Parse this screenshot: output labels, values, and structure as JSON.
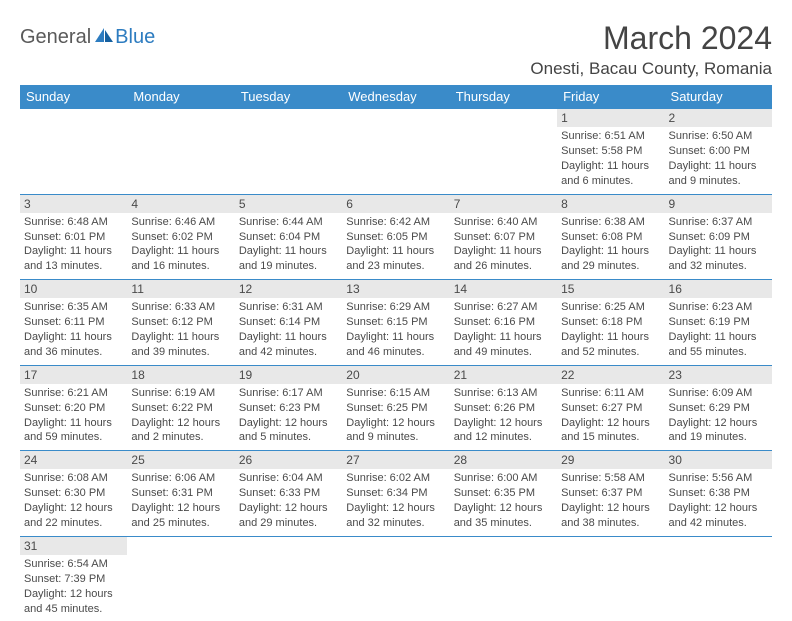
{
  "colors": {
    "header_bg": "#3a8bc9",
    "header_text": "#ffffff",
    "daynum_bg": "#e8e8e8",
    "body_text": "#4a4a4a",
    "logo_gray": "#5a5a5a",
    "logo_blue": "#2d7cc0",
    "row_border": "#3a8bc9"
  },
  "typography": {
    "month_title_fontsize": 32,
    "location_fontsize": 17,
    "dayhead_fontsize": 13,
    "daynum_fontsize": 12,
    "cell_fontsize": 11,
    "logo_fontsize": 20
  },
  "logo": {
    "general": "General",
    "blue": "Blue"
  },
  "title": "March 2024",
  "location": "Onesti, Bacau County, Romania",
  "dayHeaders": [
    "Sunday",
    "Monday",
    "Tuesday",
    "Wednesday",
    "Thursday",
    "Friday",
    "Saturday"
  ],
  "weeks": [
    [
      null,
      null,
      null,
      null,
      null,
      {
        "n": "1",
        "sr": "Sunrise: 6:51 AM",
        "ss": "Sunset: 5:58 PM",
        "dl": "Daylight: 11 hours and 6 minutes."
      },
      {
        "n": "2",
        "sr": "Sunrise: 6:50 AM",
        "ss": "Sunset: 6:00 PM",
        "dl": "Daylight: 11 hours and 9 minutes."
      }
    ],
    [
      {
        "n": "3",
        "sr": "Sunrise: 6:48 AM",
        "ss": "Sunset: 6:01 PM",
        "dl": "Daylight: 11 hours and 13 minutes."
      },
      {
        "n": "4",
        "sr": "Sunrise: 6:46 AM",
        "ss": "Sunset: 6:02 PM",
        "dl": "Daylight: 11 hours and 16 minutes."
      },
      {
        "n": "5",
        "sr": "Sunrise: 6:44 AM",
        "ss": "Sunset: 6:04 PM",
        "dl": "Daylight: 11 hours and 19 minutes."
      },
      {
        "n": "6",
        "sr": "Sunrise: 6:42 AM",
        "ss": "Sunset: 6:05 PM",
        "dl": "Daylight: 11 hours and 23 minutes."
      },
      {
        "n": "7",
        "sr": "Sunrise: 6:40 AM",
        "ss": "Sunset: 6:07 PM",
        "dl": "Daylight: 11 hours and 26 minutes."
      },
      {
        "n": "8",
        "sr": "Sunrise: 6:38 AM",
        "ss": "Sunset: 6:08 PM",
        "dl": "Daylight: 11 hours and 29 minutes."
      },
      {
        "n": "9",
        "sr": "Sunrise: 6:37 AM",
        "ss": "Sunset: 6:09 PM",
        "dl": "Daylight: 11 hours and 32 minutes."
      }
    ],
    [
      {
        "n": "10",
        "sr": "Sunrise: 6:35 AM",
        "ss": "Sunset: 6:11 PM",
        "dl": "Daylight: 11 hours and 36 minutes."
      },
      {
        "n": "11",
        "sr": "Sunrise: 6:33 AM",
        "ss": "Sunset: 6:12 PM",
        "dl": "Daylight: 11 hours and 39 minutes."
      },
      {
        "n": "12",
        "sr": "Sunrise: 6:31 AM",
        "ss": "Sunset: 6:14 PM",
        "dl": "Daylight: 11 hours and 42 minutes."
      },
      {
        "n": "13",
        "sr": "Sunrise: 6:29 AM",
        "ss": "Sunset: 6:15 PM",
        "dl": "Daylight: 11 hours and 46 minutes."
      },
      {
        "n": "14",
        "sr": "Sunrise: 6:27 AM",
        "ss": "Sunset: 6:16 PM",
        "dl": "Daylight: 11 hours and 49 minutes."
      },
      {
        "n": "15",
        "sr": "Sunrise: 6:25 AM",
        "ss": "Sunset: 6:18 PM",
        "dl": "Daylight: 11 hours and 52 minutes."
      },
      {
        "n": "16",
        "sr": "Sunrise: 6:23 AM",
        "ss": "Sunset: 6:19 PM",
        "dl": "Daylight: 11 hours and 55 minutes."
      }
    ],
    [
      {
        "n": "17",
        "sr": "Sunrise: 6:21 AM",
        "ss": "Sunset: 6:20 PM",
        "dl": "Daylight: 11 hours and 59 minutes."
      },
      {
        "n": "18",
        "sr": "Sunrise: 6:19 AM",
        "ss": "Sunset: 6:22 PM",
        "dl": "Daylight: 12 hours and 2 minutes."
      },
      {
        "n": "19",
        "sr": "Sunrise: 6:17 AM",
        "ss": "Sunset: 6:23 PM",
        "dl": "Daylight: 12 hours and 5 minutes."
      },
      {
        "n": "20",
        "sr": "Sunrise: 6:15 AM",
        "ss": "Sunset: 6:25 PM",
        "dl": "Daylight: 12 hours and 9 minutes."
      },
      {
        "n": "21",
        "sr": "Sunrise: 6:13 AM",
        "ss": "Sunset: 6:26 PM",
        "dl": "Daylight: 12 hours and 12 minutes."
      },
      {
        "n": "22",
        "sr": "Sunrise: 6:11 AM",
        "ss": "Sunset: 6:27 PM",
        "dl": "Daylight: 12 hours and 15 minutes."
      },
      {
        "n": "23",
        "sr": "Sunrise: 6:09 AM",
        "ss": "Sunset: 6:29 PM",
        "dl": "Daylight: 12 hours and 19 minutes."
      }
    ],
    [
      {
        "n": "24",
        "sr": "Sunrise: 6:08 AM",
        "ss": "Sunset: 6:30 PM",
        "dl": "Daylight: 12 hours and 22 minutes."
      },
      {
        "n": "25",
        "sr": "Sunrise: 6:06 AM",
        "ss": "Sunset: 6:31 PM",
        "dl": "Daylight: 12 hours and 25 minutes."
      },
      {
        "n": "26",
        "sr": "Sunrise: 6:04 AM",
        "ss": "Sunset: 6:33 PM",
        "dl": "Daylight: 12 hours and 29 minutes."
      },
      {
        "n": "27",
        "sr": "Sunrise: 6:02 AM",
        "ss": "Sunset: 6:34 PM",
        "dl": "Daylight: 12 hours and 32 minutes."
      },
      {
        "n": "28",
        "sr": "Sunrise: 6:00 AM",
        "ss": "Sunset: 6:35 PM",
        "dl": "Daylight: 12 hours and 35 minutes."
      },
      {
        "n": "29",
        "sr": "Sunrise: 5:58 AM",
        "ss": "Sunset: 6:37 PM",
        "dl": "Daylight: 12 hours and 38 minutes."
      },
      {
        "n": "30",
        "sr": "Sunrise: 5:56 AM",
        "ss": "Sunset: 6:38 PM",
        "dl": "Daylight: 12 hours and 42 minutes."
      }
    ],
    [
      {
        "n": "31",
        "sr": "Sunrise: 6:54 AM",
        "ss": "Sunset: 7:39 PM",
        "dl": "Daylight: 12 hours and 45 minutes."
      },
      null,
      null,
      null,
      null,
      null,
      null
    ]
  ]
}
